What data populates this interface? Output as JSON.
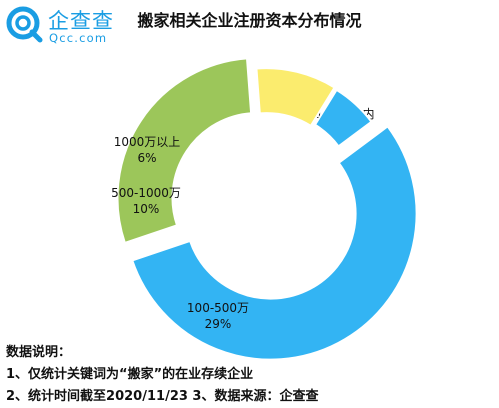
{
  "logo": {
    "cn": "企查查",
    "en": "Qcc.com"
  },
  "chart_data": {
    "type": "pie",
    "title": "搬家相关企业注册资本分布情况",
    "slices": [
      {
        "label": "100万以内",
        "value": 55,
        "value_label": "55%",
        "color": "#33b4f3"
      },
      {
        "label": "100-500万",
        "value": 29,
        "value_label": "29%",
        "color": "#9cc65a"
      },
      {
        "label": "500-1000万",
        "value": 10,
        "value_label": "10%",
        "color": "#fbec6e"
      },
      {
        "label": "1000万以上",
        "value": 6,
        "value_label": "6%",
        "color": "#33b4f3"
      }
    ]
  },
  "notes": {
    "heading": "数据说明：",
    "line1": "1、仅统计关键词为“搬家”的在业存续企业",
    "line2": "2、统计时间截至2020/11/23  3、数据来源：企查查"
  }
}
